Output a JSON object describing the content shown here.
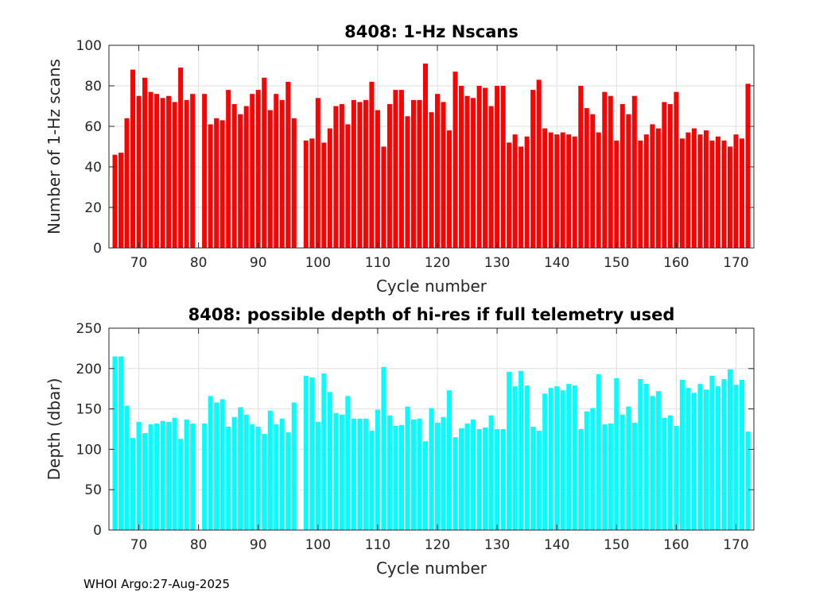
{
  "footer": "WHOI Argo:27-Aug-2025",
  "chart_data": [
    {
      "type": "bar",
      "title": "8408: 1-Hz Nscans",
      "xlabel": "Cycle number",
      "ylabel": "Number of 1-Hz scans",
      "xlim": [
        65,
        173
      ],
      "ylim": [
        0,
        100
      ],
      "xticks": [
        70,
        80,
        90,
        100,
        110,
        120,
        130,
        140,
        150,
        160,
        170
      ],
      "yticks": [
        0,
        20,
        40,
        60,
        80,
        100
      ],
      "grid": true,
      "color": "#ff0000",
      "x": [
        66,
        67,
        68,
        69,
        70,
        71,
        72,
        73,
        74,
        75,
        76,
        77,
        78,
        79,
        81,
        82,
        83,
        84,
        85,
        86,
        87,
        88,
        89,
        90,
        91,
        92,
        93,
        94,
        95,
        96,
        98,
        99,
        100,
        101,
        102,
        103,
        104,
        105,
        106,
        107,
        108,
        109,
        110,
        111,
        112,
        113,
        114,
        115,
        116,
        117,
        118,
        119,
        120,
        121,
        122,
        123,
        124,
        125,
        126,
        127,
        128,
        129,
        130,
        131,
        132,
        133,
        134,
        135,
        136,
        137,
        138,
        139,
        140,
        141,
        142,
        143,
        144,
        145,
        146,
        147,
        148,
        149,
        150,
        151,
        152,
        153,
        154,
        155,
        156,
        157,
        158,
        159,
        160,
        161,
        162,
        163,
        164,
        165,
        166,
        167,
        168,
        169,
        170,
        171,
        172
      ],
      "values": [
        46,
        47,
        64,
        88,
        75,
        84,
        77,
        76,
        74,
        75,
        72,
        89,
        73,
        76,
        76,
        61,
        64,
        63,
        78,
        71,
        66,
        70,
        76,
        78,
        84,
        68,
        76,
        73,
        82,
        64,
        53,
        54,
        74,
        52,
        59,
        70,
        71,
        61,
        73,
        72,
        73,
        82,
        68,
        50,
        71,
        78,
        78,
        65,
        73,
        73,
        91,
        67,
        76,
        72,
        58,
        87,
        80,
        75,
        74,
        80,
        79,
        70,
        80,
        80,
        52,
        56,
        50,
        55,
        78,
        83,
        59,
        57,
        56,
        57,
        56,
        55,
        80,
        69,
        66,
        57,
        77,
        75,
        53,
        71,
        66,
        75,
        53,
        56,
        61,
        59,
        72,
        71,
        77,
        54,
        57,
        59,
        56,
        58,
        53,
        55,
        53,
        50,
        56,
        54,
        81
      ]
    },
    {
      "type": "bar",
      "title": "8408: possible depth of hi-res if full telemetry used",
      "xlabel": "Cycle number",
      "ylabel": "Depth (dbar)",
      "xlim": [
        65,
        173
      ],
      "ylim": [
        0,
        250
      ],
      "xticks": [
        70,
        80,
        90,
        100,
        110,
        120,
        130,
        140,
        150,
        160,
        170
      ],
      "yticks": [
        0,
        50,
        100,
        150,
        200,
        250
      ],
      "grid": true,
      "color": "#00ffff",
      "x": [
        66,
        67,
        68,
        69,
        70,
        71,
        72,
        73,
        74,
        75,
        76,
        77,
        78,
        79,
        81,
        82,
        83,
        84,
        85,
        86,
        87,
        88,
        89,
        90,
        91,
        92,
        93,
        94,
        95,
        96,
        98,
        99,
        100,
        101,
        102,
        103,
        104,
        105,
        106,
        107,
        108,
        109,
        110,
        111,
        112,
        113,
        114,
        115,
        116,
        117,
        118,
        119,
        120,
        121,
        122,
        123,
        124,
        125,
        126,
        127,
        128,
        129,
        130,
        131,
        132,
        133,
        134,
        135,
        136,
        137,
        138,
        139,
        140,
        141,
        142,
        143,
        144,
        145,
        146,
        147,
        148,
        149,
        150,
        151,
        152,
        153,
        154,
        155,
        156,
        157,
        158,
        159,
        160,
        161,
        162,
        163,
        164,
        165,
        166,
        167,
        168,
        169,
        170,
        171,
        172
      ],
      "values": [
        215,
        215,
        154,
        114,
        134,
        120,
        131,
        132,
        135,
        134,
        139,
        113,
        137,
        132,
        132,
        166,
        158,
        162,
        128,
        140,
        152,
        143,
        131,
        128,
        119,
        148,
        131,
        138,
        121,
        158,
        191,
        189,
        134,
        194,
        171,
        145,
        143,
        166,
        138,
        138,
        138,
        123,
        149,
        202,
        142,
        129,
        130,
        153,
        137,
        138,
        110,
        151,
        133,
        140,
        173,
        115,
        126,
        132,
        137,
        125,
        127,
        142,
        125,
        125,
        196,
        178,
        197,
        179,
        128,
        123,
        169,
        176,
        178,
        173,
        181,
        179,
        125,
        147,
        151,
        193,
        131,
        132,
        188,
        143,
        153,
        133,
        187,
        181,
        166,
        172,
        139,
        142,
        129,
        186,
        176,
        170,
        181,
        174,
        191,
        178,
        187,
        199,
        180,
        186,
        122
      ]
    }
  ]
}
